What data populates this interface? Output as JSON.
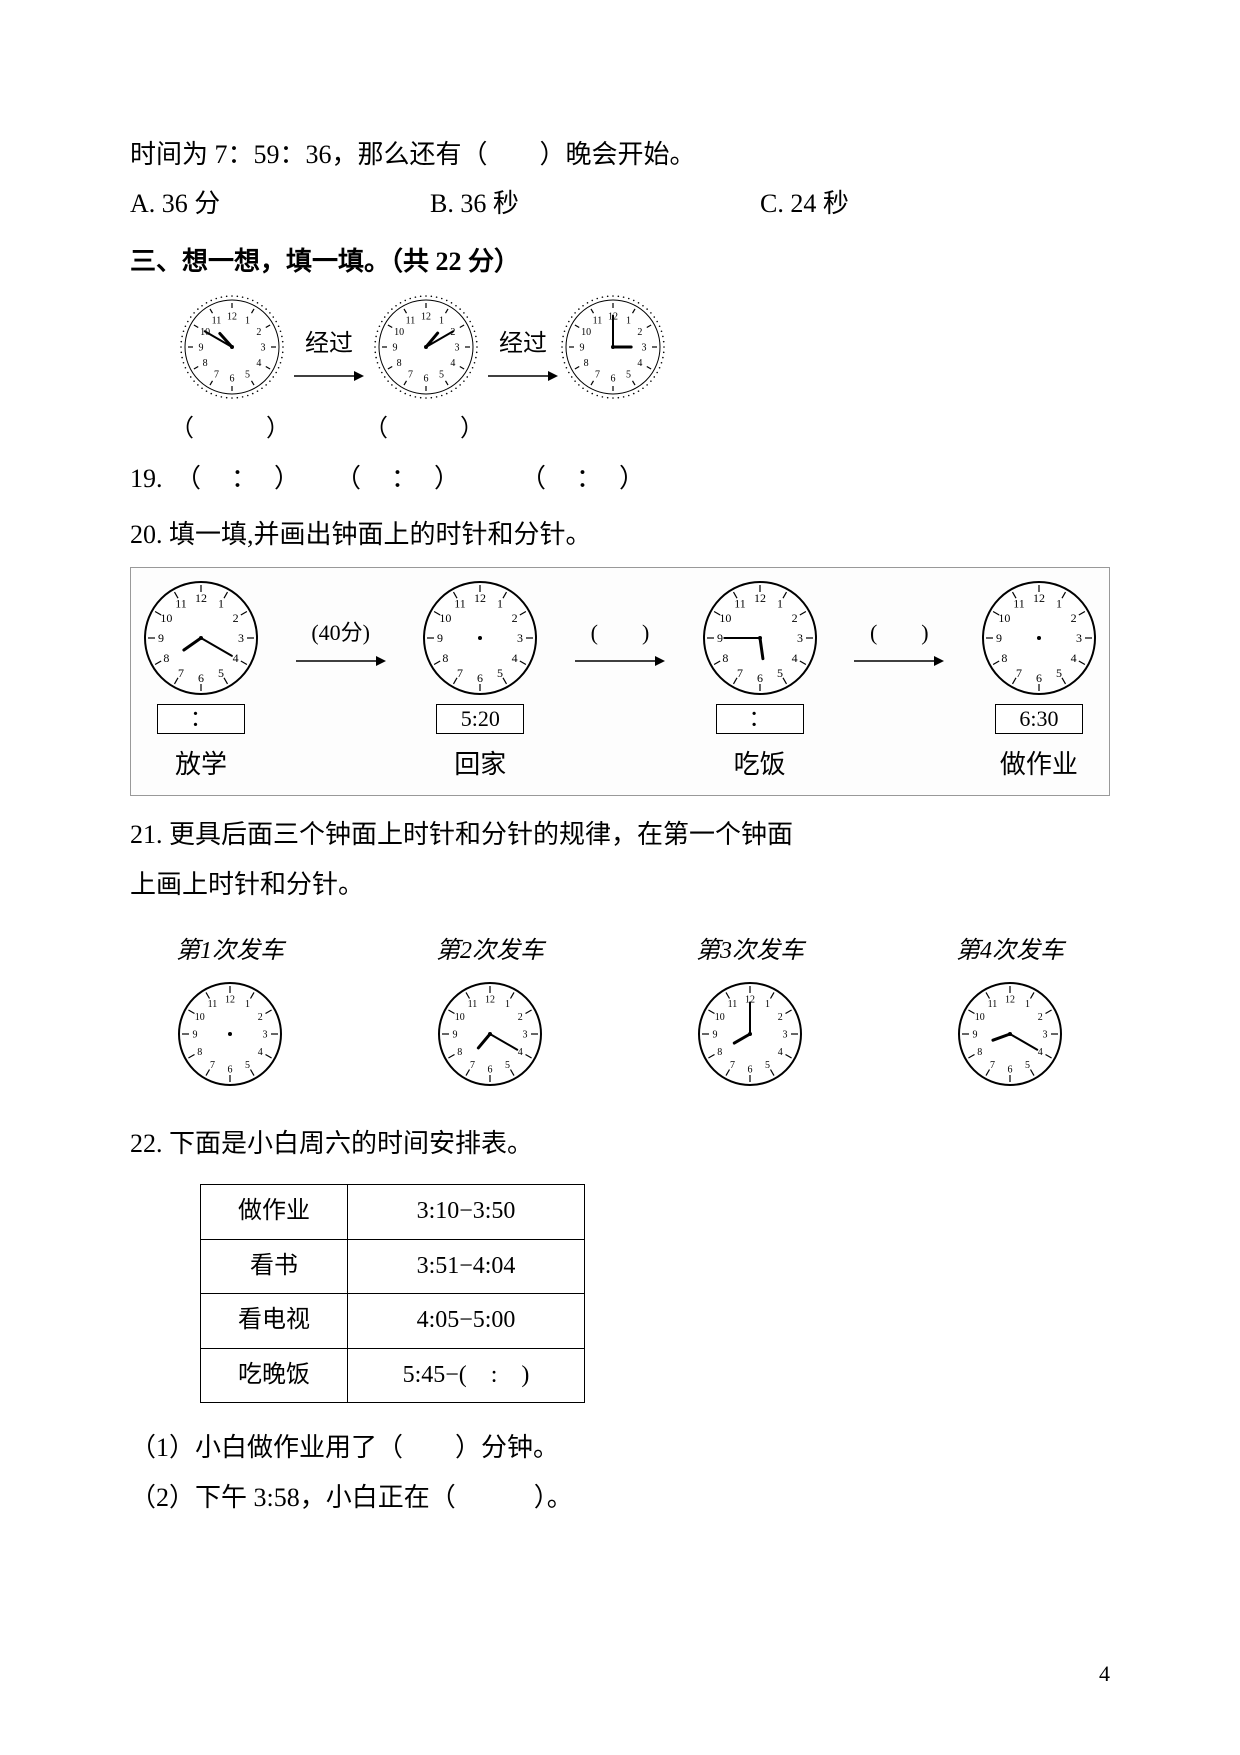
{
  "line1": "时间为 7：59：36，那么还有（　　）晚会开始。",
  "options": {
    "A": "A. 36 分",
    "B": "B. 36 秒",
    "C": "C. 24 秒"
  },
  "section3_title": "三、想一想，填一填。（共 22 分）",
  "q19": {
    "num": "19.",
    "pass_label": "经过",
    "blank_paren": "（　　　）",
    "colon_blank": "（　：　）",
    "clocks": [
      {
        "hour_angle": 318,
        "minute_angle": 300
      },
      {
        "hour_angle": 40,
        "minute_angle": 60
      },
      {
        "hour_angle": 90,
        "minute_angle": 0
      }
    ]
  },
  "q20": {
    "text": "20. 填一填,并画出钟面上的时针和分针。",
    "arrow1_label": "(40分)",
    "arrow_blank": "(　　)",
    "cols": [
      {
        "time_label": "：",
        "caption": "放学",
        "hour_angle": 235,
        "minute_angle": 120,
        "show_hands": true,
        "blank": true
      },
      {
        "time_label": "5:20",
        "caption": "回家",
        "hour_angle": 0,
        "minute_angle": 0,
        "show_hands": false,
        "blank": false
      },
      {
        "time_label": "：",
        "caption": "吃饭",
        "hour_angle": 172,
        "minute_angle": 270,
        "show_hands": true,
        "blank": true
      },
      {
        "time_label": "6:30",
        "caption": "做作业",
        "hour_angle": 0,
        "minute_angle": 0,
        "show_hands": false,
        "blank": false
      }
    ]
  },
  "q21": {
    "text1": "21. 更具后面三个钟面上时针和分针的规律，在第一个钟面",
    "text2": "上画上时针和分针。",
    "cols": [
      {
        "caption": "第1次发车",
        "show_hands": false,
        "hour_angle": 0,
        "minute_angle": 0
      },
      {
        "caption": "第2次发车",
        "show_hands": true,
        "hour_angle": 220,
        "minute_angle": 120
      },
      {
        "caption": "第3次发车",
        "show_hands": true,
        "hour_angle": 240,
        "minute_angle": 0
      },
      {
        "caption": "第4次发车",
        "show_hands": true,
        "hour_angle": 250,
        "minute_angle": 120
      }
    ]
  },
  "q22": {
    "text": "22. 下面是小白周六的时间安排表。",
    "rows": [
      [
        "做作业",
        "3:10−3:50"
      ],
      [
        "看书",
        "3:51−4:04"
      ],
      [
        "看电视",
        "4:05−5:00"
      ],
      [
        "吃晚饭",
        "5:45−(　:　)"
      ]
    ],
    "sub1": "（1）小白做作业用了（　　）分钟。",
    "sub2": "（2）下午 3:58，小白正在（　　　）。"
  },
  "page_number": "4",
  "colors": {
    "text": "#000000",
    "clock_stroke": "#000000",
    "box_border": "#999999",
    "bg": "#ffffff"
  }
}
